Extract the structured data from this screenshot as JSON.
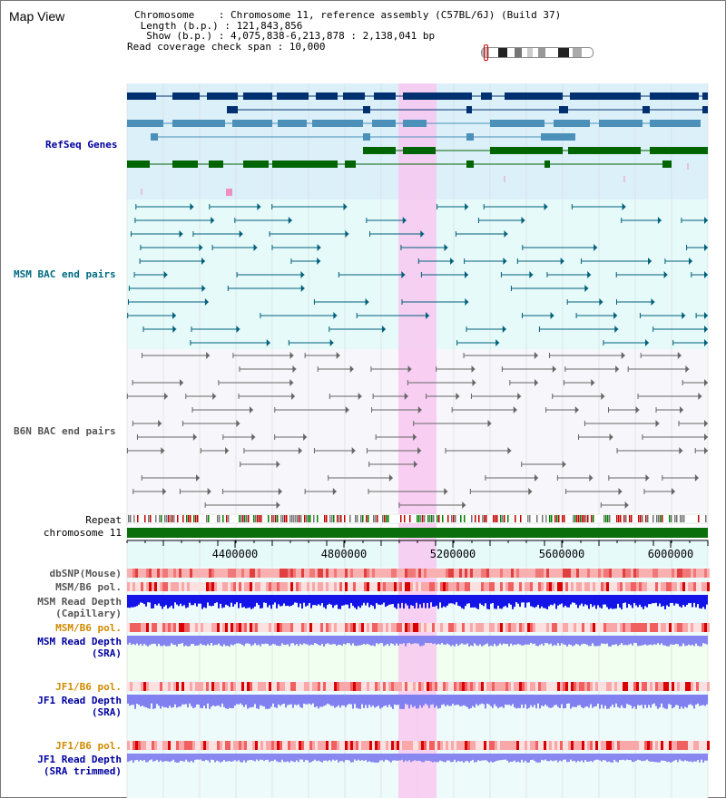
{
  "header": {
    "title": "Map View",
    "chromosome_line": "Chromosome    : Chromosome 11, reference assembly (C57BL/6J) (Build 37)",
    "length_line": " Length (b.p.) : 121,843,856",
    "show_line": "  Show (b.p.) : 4,075,838-6,213,878 : 2,138,041 bp",
    "coverage_line": "Read coverage check span : 10,000"
  },
  "tracks": {
    "refseq": "RefSeq Genes",
    "msm_bac": "MSM BAC end pairs",
    "b6n_bac": "B6N BAC end pairs",
    "repeat": "Repeat",
    "chromosome": "chromosome 11",
    "dbsnp": "dbSNP(Mouse)",
    "msm_pol": "MSM/B6 pol.",
    "msm_depth_cap_1": "MSM Read Depth",
    "msm_depth_cap_2": "(Capillary)",
    "msm_pol_sra": "MSM/B6 pol.",
    "msm_depth_sra_1": "MSM Read Depth",
    "msm_depth_sra_2": "(SRA)",
    "jf1_pol": "JF1/B6 pol.",
    "jf1_depth_1": "JF1 Read Depth",
    "jf1_depth_2": "(SRA)",
    "jf1_pol_trim": "JF1/B6 pol.",
    "jf1_trim_1": "JF1 Read Depth",
    "jf1_trim_2": "(SRA trimmed)"
  },
  "axis": {
    "ticks": [
      "4400000",
      "4800000",
      "5200000",
      "5600000",
      "6000000"
    ]
  },
  "colors": {
    "highlight": "#f8d0f0",
    "refseq_bg": "#dcf0fa",
    "msm_bg": "#e6fafa",
    "b6n_bg": "#f7f7fb",
    "gene_dark": "#003070",
    "gene_mid": "#4a90b8",
    "gene_green": "#006400",
    "msm_line": "#00607a",
    "b6n_line": "#666666",
    "depth_blue": "#1010e0",
    "depth_light": "#8080f0"
  }
}
